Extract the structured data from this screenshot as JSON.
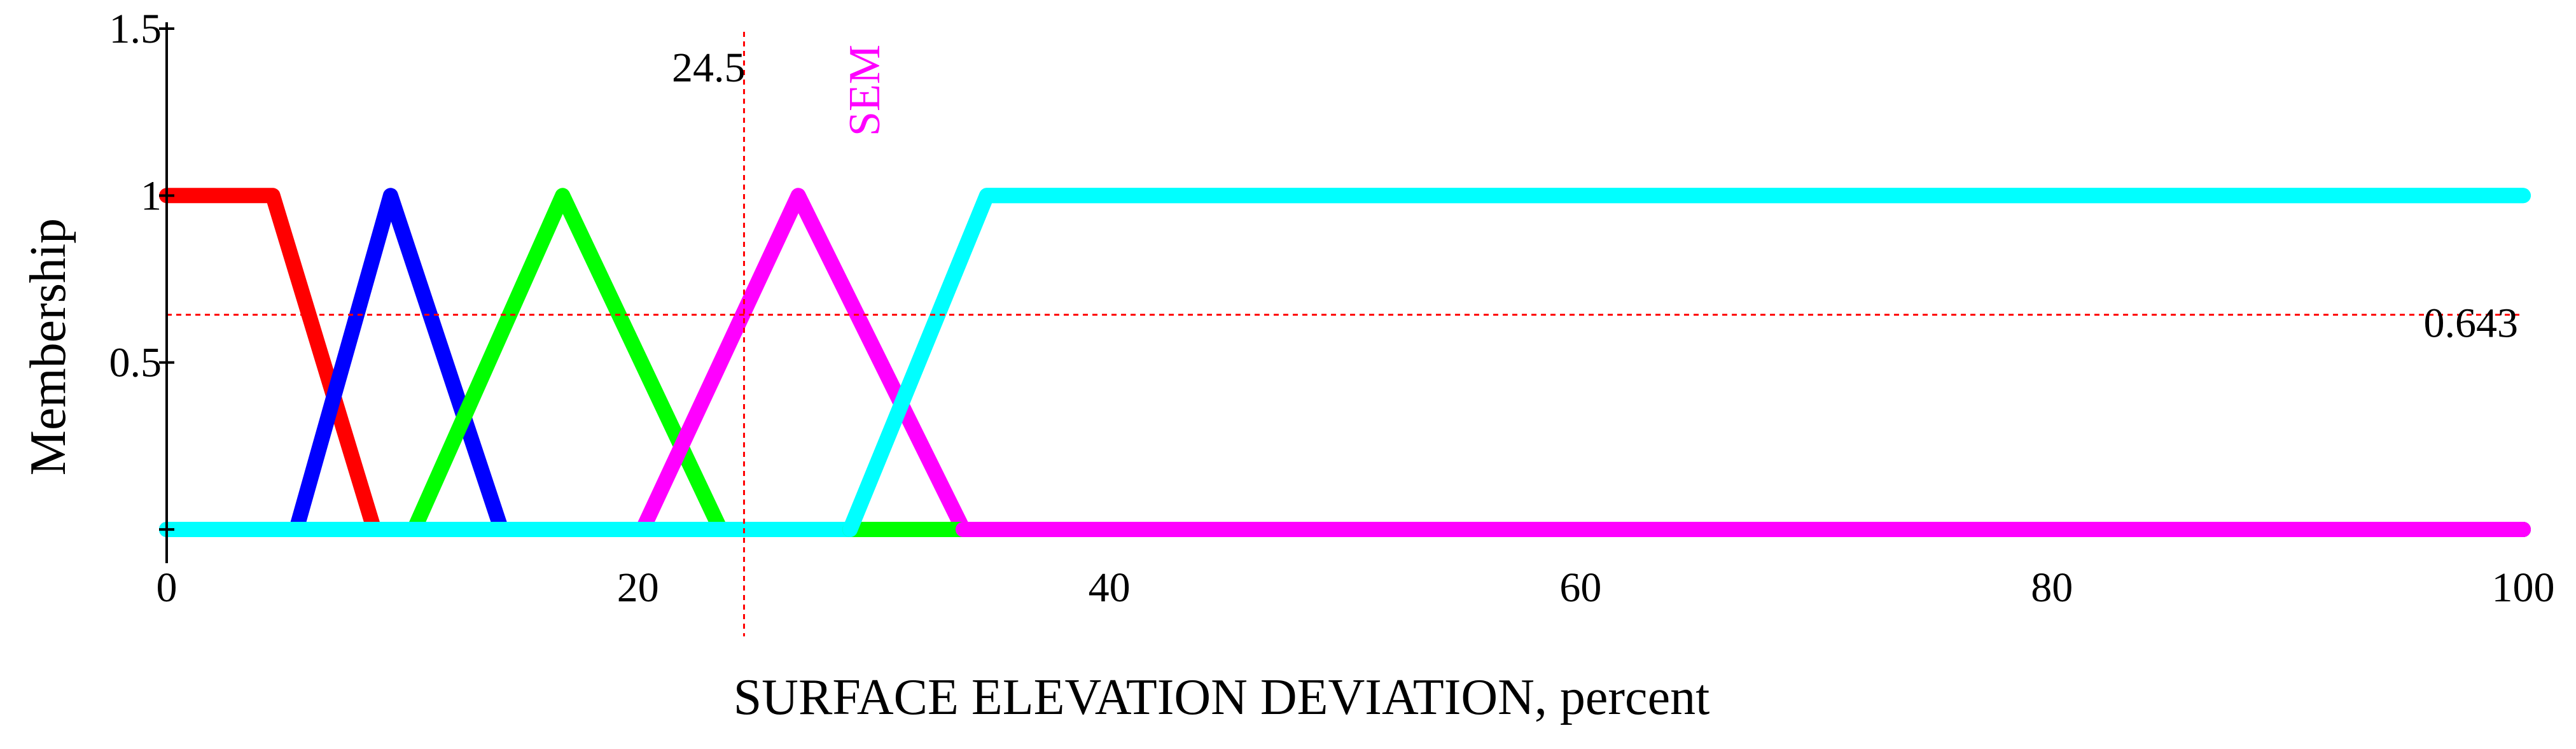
{
  "chart_data": {
    "type": "line",
    "xlabel": "SURFACE ELEVATION DEVIATION, percent",
    "ylabel": "Membership",
    "xlim": [
      0,
      100
    ],
    "ylim": [
      0,
      1.5
    ],
    "x_ticks": [
      0,
      20,
      40,
      60,
      80,
      100
    ],
    "x_tick_labels": [
      "0",
      "20",
      "40",
      "60",
      "80",
      "100"
    ],
    "y_ticks": [
      0.5,
      1,
      1.5
    ],
    "y_tick_labels": [
      "0.5",
      "1",
      "1.5"
    ],
    "grid": false,
    "series": [
      {
        "color": "#ff0000",
        "points": [
          [
            0,
            1
          ],
          [
            4.5,
            1
          ],
          [
            8.8,
            0
          ],
          [
            100,
            0
          ]
        ]
      },
      {
        "color": "#0000ff",
        "points": [
          [
            0,
            0
          ],
          [
            5.5,
            0
          ],
          [
            9.5,
            1
          ],
          [
            14.2,
            0
          ],
          [
            100,
            0
          ]
        ]
      },
      {
        "color": "#00ff00",
        "points": [
          [
            0,
            0
          ],
          [
            10.5,
            0
          ],
          [
            16.8,
            1
          ],
          [
            23.5,
            0
          ],
          [
            100,
            0
          ]
        ]
      },
      {
        "name": "SEM",
        "color": "#ff00ff",
        "points": [
          [
            0,
            0
          ],
          [
            20.2,
            0
          ],
          [
            26.8,
            1
          ],
          [
            33.8,
            0
          ],
          [
            100,
            0
          ]
        ]
      },
      {
        "color": "#00ffff",
        "points": [
          [
            0,
            0
          ],
          [
            29,
            0
          ],
          [
            34.8,
            1
          ],
          [
            100,
            1
          ]
        ]
      }
    ],
    "annotations": {
      "vertical_line": {
        "x": 24.5,
        "label": "24.5",
        "color": "#ff0000"
      },
      "horizontal_line": {
        "y": 0.643,
        "label": "0.643",
        "color": "#ff0000"
      },
      "series_label": {
        "text": "SEM",
        "color": "#ff00ff"
      }
    }
  }
}
